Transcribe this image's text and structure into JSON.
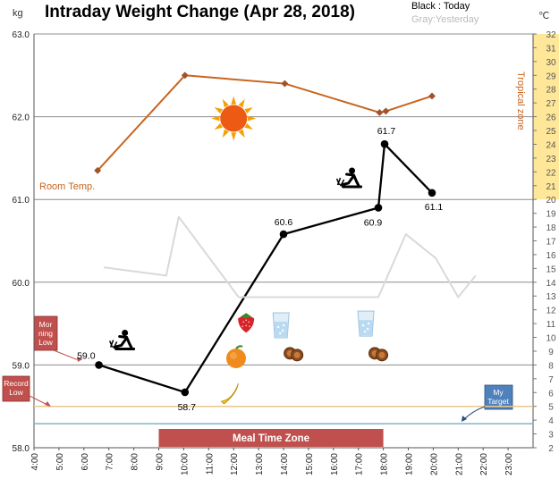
{
  "chart_data": {
    "type": "line",
    "title": "Intraday Weight Change (Apr 28, 2018)",
    "y_unit": "kg",
    "y2_unit": "℃",
    "ylim": [
      58.0,
      63.0
    ],
    "y_ticks": [
      "58.0",
      "59.0",
      "60.0",
      "61.0",
      "62.0",
      "63.0"
    ],
    "y2lim": [
      2,
      32
    ],
    "y2_ticks": [
      "2",
      "3",
      "4",
      "5",
      "6",
      "7",
      "8",
      "9",
      "10",
      "11",
      "12",
      "13",
      "14",
      "15",
      "16",
      "17",
      "18",
      "19",
      "20",
      "21",
      "22",
      "23",
      "24",
      "25",
      "26",
      "27",
      "28",
      "29",
      "30",
      "31",
      "32"
    ],
    "x_ticks": [
      {
        "h": 4,
        "label": "4:00"
      },
      {
        "h": 5,
        "label": "5:00"
      },
      {
        "h": 6,
        "label": "6:00"
      },
      {
        "h": 7,
        "label": "7:00"
      },
      {
        "h": 8,
        "label": "8:00"
      },
      {
        "h": 9,
        "label": "9:00"
      },
      {
        "h": 10,
        "label": "10:00"
      },
      {
        "h": 11,
        "label": "11:00"
      },
      {
        "h": 12,
        "label": "12:00"
      },
      {
        "h": 13,
        "label": "13:00"
      },
      {
        "h": 14,
        "label": "14:00"
      },
      {
        "h": 15,
        "label": "15:00"
      },
      {
        "h": 16,
        "label": "16:00"
      },
      {
        "h": 17,
        "label": "17:00"
      },
      {
        "h": 18,
        "label": "18:00"
      },
      {
        "h": 19,
        "label": "19:00"
      },
      {
        "h": 20,
        "label": "20:00"
      },
      {
        "h": 21,
        "label": "21:00"
      },
      {
        "h": 22,
        "label": "22:00"
      },
      {
        "h": 23,
        "label": "23:00"
      }
    ],
    "legend": {
      "today": "Black : Today",
      "yesterday": "Gray:Yesterday",
      "placement": "top-right"
    },
    "series": [
      {
        "name": "Today",
        "color": "#000000",
        "points": [
          {
            "x": 6.6,
            "y": 59.0,
            "label": "59.0"
          },
          {
            "x": 10.05,
            "y": 58.67,
            "label": "58.7"
          },
          {
            "x": 14.0,
            "y": 60.58,
            "label": "60.6"
          },
          {
            "x": 17.8,
            "y": 60.9,
            "label": "60.9"
          },
          {
            "x": 18.05,
            "y": 61.67,
            "label": "61.7"
          },
          {
            "x": 19.95,
            "y": 61.08,
            "label": "61.1"
          }
        ]
      },
      {
        "name": "Yesterday",
        "color": "#d9d9d9",
        "points": [
          {
            "x": 6.8,
            "y": 60.18
          },
          {
            "x": 9.3,
            "y": 60.08
          },
          {
            "x": 9.8,
            "y": 60.79
          },
          {
            "x": 12.2,
            "y": 59.82
          },
          {
            "x": 17.8,
            "y": 59.82
          },
          {
            "x": 18.9,
            "y": 60.58
          },
          {
            "x": 20.1,
            "y": 60.29
          },
          {
            "x": 21.0,
            "y": 59.82
          },
          {
            "x": 21.7,
            "y": 60.08
          }
        ]
      },
      {
        "name": "Room Temp.",
        "axis": "y2",
        "color": "#c8641e",
        "points": [
          {
            "x": 6.55,
            "y": 22.1
          },
          {
            "x": 10.05,
            "y": 29.0
          },
          {
            "x": 14.05,
            "y": 28.4
          },
          {
            "x": 17.85,
            "y": 26.3
          },
          {
            "x": 18.1,
            "y": 26.4
          },
          {
            "x": 19.95,
            "y": 27.5
          }
        ]
      }
    ],
    "reference_lines": [
      {
        "y": 58.5,
        "color": "#e8c88a"
      },
      {
        "y": 58.29,
        "color": "#7fb6c6"
      }
    ],
    "tropical_zone": {
      "from": 20,
      "to": 32,
      "label": "Tropical zone"
    },
    "meal_time_zone": {
      "from": 9.0,
      "to": 18.0,
      "label": "Meal Time Zone"
    },
    "annotations": {
      "room_temp": "Room Temp.",
      "morning_low": "Mor ning Low",
      "record_low": "Record Low",
      "my_target": "My Target"
    },
    "icons": [
      {
        "name": "sun-icon",
        "x": 12.0,
        "y": 61.98
      },
      {
        "name": "exercise-icon",
        "x": 7.5,
        "y": 59.28
      },
      {
        "name": "exercise-icon",
        "x": 16.6,
        "y": 61.24
      },
      {
        "name": "strawberry-icon",
        "x": 12.5,
        "y": 59.52
      },
      {
        "name": "orange-icon",
        "x": 12.1,
        "y": 59.08
      },
      {
        "name": "banana-icon",
        "x": 11.9,
        "y": 58.67
      },
      {
        "name": "water-glass-icon",
        "x": 13.9,
        "y": 59.48
      },
      {
        "name": "water-glass-icon",
        "x": 17.3,
        "y": 59.5
      },
      {
        "name": "cookie-icon",
        "x": 14.4,
        "y": 59.13
      },
      {
        "name": "cookie-icon",
        "x": 17.8,
        "y": 59.13
      }
    ],
    "grid": true
  }
}
